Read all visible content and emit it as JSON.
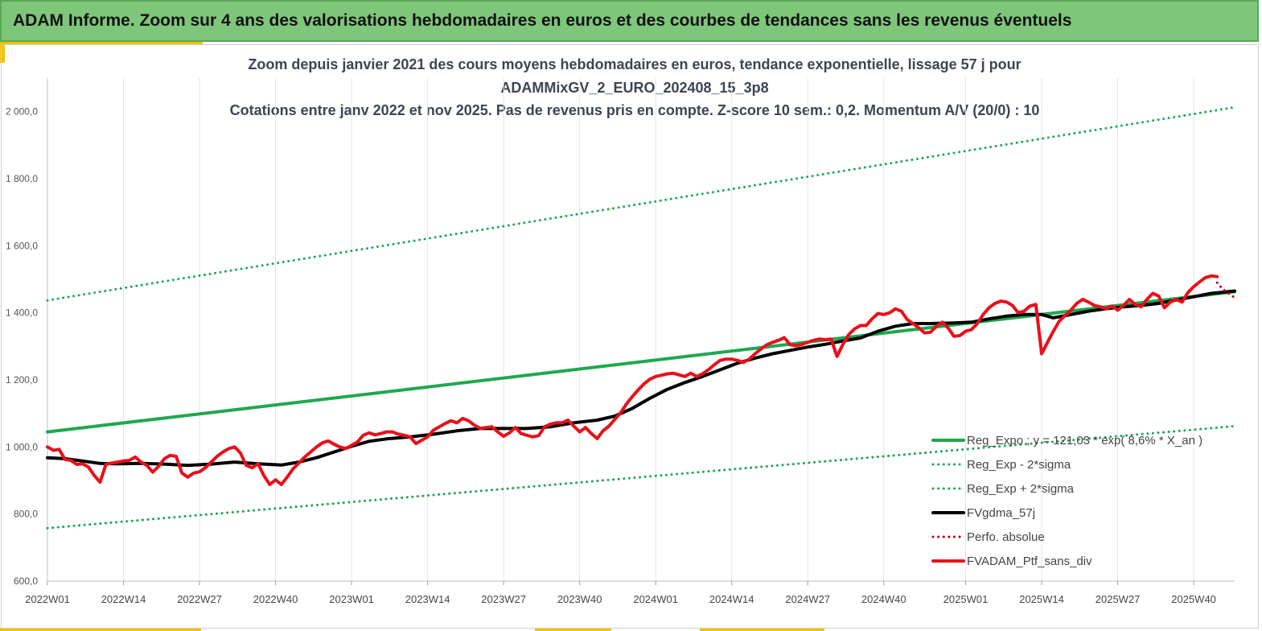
{
  "header": {
    "title": "ADAM Informe. Zoom sur 4 ans des valorisations hebdomadaires en euros et des courbes de tendances sans les revenus éventuels"
  },
  "chart_data": {
    "type": "line",
    "title_lines": [
      "Zoom depuis janvier 2021 des cours moyens hebdomadaires  en euros, tendance exponentielle, lissage 57 j pour",
      "ADAMMixGV_2_EURO_202408_15_3p8",
      "Cotations  entre janv 2022 et nov 2025. Pas de revenus pris en compte. Z-score 10 sem.: 0,2. Momentum  A/V (20/0) : 10"
    ],
    "ylim": [
      600,
      2100
    ],
    "y_ticks": [
      {
        "value": 600,
        "label": "600,0"
      },
      {
        "value": 800,
        "label": "800,0"
      },
      {
        "value": 1000,
        "label": "1 000,0"
      },
      {
        "value": 1200,
        "label": "1 200,0"
      },
      {
        "value": 1400,
        "label": "1 400,0"
      },
      {
        "value": 1600,
        "label": "1 600,0"
      },
      {
        "value": 1800,
        "label": "1 800,0"
      },
      {
        "value": 2000,
        "label": "2 000,0"
      }
    ],
    "x_ticks": [
      {
        "week": 0,
        "label": "2022W01"
      },
      {
        "week": 13,
        "label": "2022W14"
      },
      {
        "week": 26,
        "label": "2022W27"
      },
      {
        "week": 39,
        "label": "2022W40"
      },
      {
        "week": 52,
        "label": "2023W01"
      },
      {
        "week": 65,
        "label": "2023W14"
      },
      {
        "week": 78,
        "label": "2023W27"
      },
      {
        "week": 91,
        "label": "2023W40"
      },
      {
        "week": 104,
        "label": "2024W01"
      },
      {
        "week": 117,
        "label": "2024W14"
      },
      {
        "week": 130,
        "label": "2024W27"
      },
      {
        "week": 143,
        "label": "2024W40"
      },
      {
        "week": 157,
        "label": "2025W01"
      },
      {
        "week": 170,
        "label": "2025W14"
      },
      {
        "week": 183,
        "label": "2025W27"
      },
      {
        "week": 196,
        "label": "2025W40"
      }
    ],
    "x_max_week": 203,
    "grid": "vertical",
    "legend_position": "bottom-right",
    "colors": {
      "reg_expo": "#1fa84f",
      "band": "#1fa84f",
      "mma": "#000000",
      "perfo": "#c00000",
      "ptf": "#e8101a"
    },
    "series": [
      {
        "name": "Reg_Expo ; y = 121,03 * exp( 8,6% *  X_an )",
        "style": "solid",
        "color": "#1fa84f",
        "points": [
          [
            0,
            1045
          ],
          [
            203,
            1463
          ]
        ]
      },
      {
        "name": "Reg_Exp - 2*sigma",
        "style": "dotted",
        "color": "#1fa84f",
        "points": [
          [
            0,
            758
          ],
          [
            203,
            1062
          ]
        ]
      },
      {
        "name": "Reg_Exp + 2*sigma",
        "style": "dotted",
        "color": "#1fa84f",
        "points": [
          [
            0,
            1437
          ],
          [
            203,
            2013
          ]
        ]
      },
      {
        "name": "FVgdma_57j",
        "style": "solid",
        "color": "#000000",
        "points": [
          [
            0,
            968
          ],
          [
            3,
            965
          ],
          [
            6,
            958
          ],
          [
            9,
            951
          ],
          [
            12,
            950
          ],
          [
            16,
            951
          ],
          [
            20,
            949
          ],
          [
            24,
            945
          ],
          [
            28,
            949
          ],
          [
            32,
            955
          ],
          [
            36,
            950
          ],
          [
            38,
            948
          ],
          [
            40,
            946
          ],
          [
            43,
            955
          ],
          [
            46,
            968
          ],
          [
            49,
            985
          ],
          [
            52,
            1002
          ],
          [
            55,
            1017
          ],
          [
            58,
            1024
          ],
          [
            62,
            1030
          ],
          [
            66,
            1038
          ],
          [
            70,
            1048
          ],
          [
            74,
            1055
          ],
          [
            78,
            1055
          ],
          [
            82,
            1055
          ],
          [
            86,
            1060
          ],
          [
            90,
            1072
          ],
          [
            94,
            1080
          ],
          [
            97,
            1092
          ],
          [
            100,
            1115
          ],
          [
            103,
            1145
          ],
          [
            106,
            1172
          ],
          [
            109,
            1192
          ],
          [
            112,
            1210
          ],
          [
            115,
            1230
          ],
          [
            118,
            1250
          ],
          [
            121,
            1265
          ],
          [
            124,
            1278
          ],
          [
            127,
            1288
          ],
          [
            130,
            1298
          ],
          [
            133,
            1306
          ],
          [
            136,
            1316
          ],
          [
            139,
            1325
          ],
          [
            142,
            1345
          ],
          [
            145,
            1360
          ],
          [
            148,
            1368
          ],
          [
            151,
            1368
          ],
          [
            155,
            1370
          ],
          [
            158,
            1372
          ],
          [
            161,
            1382
          ],
          [
            164,
            1390
          ],
          [
            167,
            1395
          ],
          [
            170,
            1395
          ],
          [
            172,
            1385
          ],
          [
            175,
            1395
          ],
          [
            178,
            1405
          ],
          [
            181,
            1412
          ],
          [
            184,
            1418
          ],
          [
            187,
            1422
          ],
          [
            190,
            1428
          ],
          [
            193,
            1438
          ],
          [
            196,
            1448
          ],
          [
            199,
            1458
          ],
          [
            203,
            1465
          ]
        ]
      },
      {
        "name": "Perfo. absolue",
        "style": "dotted",
        "color": "#c00000",
        "points": [
          [
            200,
            1490
          ],
          [
            201,
            1470
          ],
          [
            203,
            1445
          ]
        ]
      },
      {
        "name": "FVADAM_Ptf_sans_div",
        "style": "solid",
        "color": "#e8101a",
        "points": [
          [
            0,
            1000
          ],
          [
            1,
            990
          ],
          [
            2,
            993
          ],
          [
            3,
            963
          ],
          [
            4,
            960
          ],
          [
            5,
            948
          ],
          [
            6,
            950
          ],
          [
            7,
            940
          ],
          [
            8,
            915
          ],
          [
            9,
            895
          ],
          [
            10,
            948
          ],
          [
            11,
            952
          ],
          [
            12,
            955
          ],
          [
            13,
            958
          ],
          [
            14,
            960
          ],
          [
            15,
            970
          ],
          [
            16,
            955
          ],
          [
            17,
            945
          ],
          [
            18,
            925
          ],
          [
            19,
            942
          ],
          [
            20,
            965
          ],
          [
            21,
            975
          ],
          [
            22,
            972
          ],
          [
            23,
            922
          ],
          [
            24,
            910
          ],
          [
            25,
            922
          ],
          [
            26,
            926
          ],
          [
            27,
            938
          ],
          [
            28,
            955
          ],
          [
            29,
            972
          ],
          [
            30,
            985
          ],
          [
            31,
            995
          ],
          [
            32,
            1000
          ],
          [
            33,
            982
          ],
          [
            34,
            945
          ],
          [
            35,
            938
          ],
          [
            36,
            950
          ],
          [
            37,
            915
          ],
          [
            38,
            888
          ],
          [
            39,
            902
          ],
          [
            40,
            888
          ],
          [
            41,
            910
          ],
          [
            42,
            935
          ],
          [
            43,
            952
          ],
          [
            44,
            970
          ],
          [
            45,
            985
          ],
          [
            46,
            1000
          ],
          [
            47,
            1012
          ],
          [
            48,
            1018
          ],
          [
            49,
            1008
          ],
          [
            50,
            1000
          ],
          [
            51,
            995
          ],
          [
            52,
            1005
          ],
          [
            53,
            1015
          ],
          [
            54,
            1035
          ],
          [
            55,
            1042
          ],
          [
            56,
            1036
          ],
          [
            57,
            1040
          ],
          [
            58,
            1045
          ],
          [
            59,
            1045
          ],
          [
            60,
            1038
          ],
          [
            61,
            1035
          ],
          [
            62,
            1030
          ],
          [
            63,
            1010
          ],
          [
            64,
            1020
          ],
          [
            65,
            1030
          ],
          [
            66,
            1050
          ],
          [
            67,
            1060
          ],
          [
            68,
            1070
          ],
          [
            69,
            1078
          ],
          [
            70,
            1072
          ],
          [
            71,
            1085
          ],
          [
            72,
            1078
          ],
          [
            73,
            1065
          ],
          [
            74,
            1055
          ],
          [
            75,
            1058
          ],
          [
            76,
            1060
          ],
          [
            77,
            1045
          ],
          [
            78,
            1032
          ],
          [
            79,
            1042
          ],
          [
            80,
            1058
          ],
          [
            81,
            1040
          ],
          [
            82,
            1035
          ],
          [
            83,
            1030
          ],
          [
            84,
            1034
          ],
          [
            85,
            1060
          ],
          [
            86,
            1068
          ],
          [
            87,
            1072
          ],
          [
            88,
            1072
          ],
          [
            89,
            1080
          ],
          [
            90,
            1062
          ],
          [
            91,
            1045
          ],
          [
            92,
            1058
          ],
          [
            93,
            1040
          ],
          [
            94,
            1025
          ],
          [
            95,
            1048
          ],
          [
            96,
            1062
          ],
          [
            97,
            1082
          ],
          [
            98,
            1102
          ],
          [
            99,
            1128
          ],
          [
            100,
            1150
          ],
          [
            101,
            1170
          ],
          [
            102,
            1188
          ],
          [
            103,
            1202
          ],
          [
            104,
            1210
          ],
          [
            105,
            1214
          ],
          [
            106,
            1218
          ],
          [
            107,
            1220
          ],
          [
            108,
            1215
          ],
          [
            109,
            1210
          ],
          [
            110,
            1220
          ],
          [
            111,
            1210
          ],
          [
            112,
            1218
          ],
          [
            113,
            1230
          ],
          [
            114,
            1245
          ],
          [
            115,
            1258
          ],
          [
            116,
            1262
          ],
          [
            117,
            1262
          ],
          [
            118,
            1258
          ],
          [
            119,
            1252
          ],
          [
            120,
            1262
          ],
          [
            121,
            1278
          ],
          [
            122,
            1292
          ],
          [
            123,
            1305
          ],
          [
            124,
            1312
          ],
          [
            125,
            1318
          ],
          [
            126,
            1326
          ],
          [
            127,
            1305
          ],
          [
            128,
            1302
          ],
          [
            129,
            1306
          ],
          [
            130,
            1312
          ],
          [
            131,
            1318
          ],
          [
            132,
            1322
          ],
          [
            133,
            1320
          ],
          [
            134,
            1322
          ],
          [
            135,
            1270
          ],
          [
            136,
            1305
          ],
          [
            137,
            1335
          ],
          [
            138,
            1352
          ],
          [
            139,
            1362
          ],
          [
            140,
            1362
          ],
          [
            141,
            1382
          ],
          [
            142,
            1398
          ],
          [
            143,
            1395
          ],
          [
            144,
            1400
          ],
          [
            145,
            1412
          ],
          [
            146,
            1405
          ],
          [
            147,
            1380
          ],
          [
            148,
            1368
          ],
          [
            149,
            1355
          ],
          [
            150,
            1340
          ],
          [
            151,
            1342
          ],
          [
            152,
            1360
          ],
          [
            153,
            1372
          ],
          [
            154,
            1355
          ],
          [
            155,
            1330
          ],
          [
            156,
            1332
          ],
          [
            157,
            1345
          ],
          [
            158,
            1350
          ],
          [
            159,
            1368
          ],
          [
            160,
            1395
          ],
          [
            161,
            1415
          ],
          [
            162,
            1428
          ],
          [
            163,
            1435
          ],
          [
            164,
            1432
          ],
          [
            165,
            1422
          ],
          [
            166,
            1400
          ],
          [
            167,
            1405
          ],
          [
            168,
            1420
          ],
          [
            169,
            1425
          ],
          [
            170,
            1278
          ],
          [
            171,
            1312
          ],
          [
            172,
            1345
          ],
          [
            173,
            1375
          ],
          [
            174,
            1392
          ],
          [
            175,
            1408
          ],
          [
            176,
            1428
          ],
          [
            177,
            1440
          ],
          [
            178,
            1432
          ],
          [
            179,
            1422
          ],
          [
            180,
            1418
          ],
          [
            181,
            1412
          ],
          [
            182,
            1420
          ],
          [
            183,
            1408
          ],
          [
            184,
            1422
          ],
          [
            185,
            1440
          ],
          [
            186,
            1425
          ],
          [
            187,
            1418
          ],
          [
            188,
            1440
          ],
          [
            189,
            1458
          ],
          [
            190,
            1450
          ],
          [
            191,
            1415
          ],
          [
            192,
            1432
          ],
          [
            193,
            1440
          ],
          [
            194,
            1432
          ],
          [
            195,
            1460
          ],
          [
            196,
            1478
          ],
          [
            197,
            1492
          ],
          [
            198,
            1505
          ],
          [
            199,
            1510
          ],
          [
            200,
            1508
          ]
        ]
      }
    ]
  }
}
